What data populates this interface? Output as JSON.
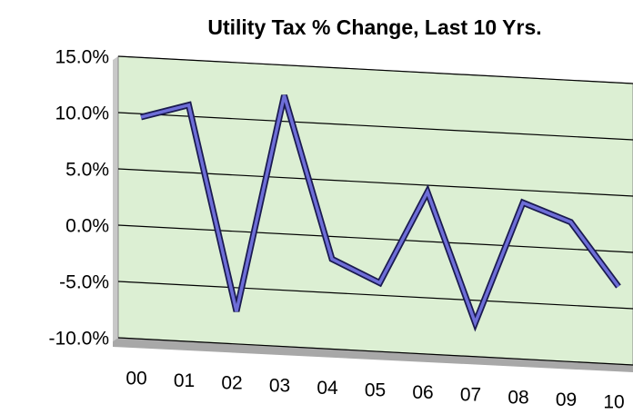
{
  "chart_data": {
    "type": "line",
    "title": "Utility Tax % Change, Last 10 Yrs.",
    "categories": [
      "00",
      "01",
      "02",
      "03",
      "04",
      "05",
      "06",
      "07",
      "08",
      "09",
      "10"
    ],
    "values": [
      9.7,
      11,
      -7.1,
      12.3,
      -2,
      -3.9,
      4.4,
      -7,
      3.9,
      2.4,
      -3.1
    ],
    "color": "#6e6ed8",
    "ylim": [
      -10,
      15
    ],
    "yticks": [
      {
        "value": -10,
        "label": "-10.0%"
      },
      {
        "value": -5,
        "label": "-5.0%"
      },
      {
        "value": 0,
        "label": "0.0%"
      },
      {
        "value": 5,
        "label": "5.0%"
      },
      {
        "value": 10,
        "label": "10.0%"
      },
      {
        "value": 15,
        "label": "15.0%"
      }
    ],
    "grid": true
  }
}
